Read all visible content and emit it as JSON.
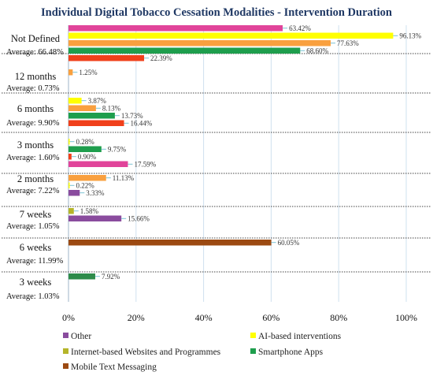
{
  "chart_data": {
    "type": "bar",
    "orientation": "horizontal",
    "title": "Individual Digital Tobacco Cessation Modalities - Intervention Duration",
    "xlabel": "",
    "ylabel": "",
    "xlim": [
      0,
      100
    ],
    "x_ticks": [
      "0%",
      "20%",
      "40%",
      "60%",
      "80%",
      "100%"
    ],
    "grid": "vertical",
    "legend_position": "bottom",
    "colors": {
      "Other": "#e1449a",
      "AI-based interventions": "#ffff00",
      "Internet-based Websites and Programmes": "#b5b52a",
      "Smartphone Apps": "#1e9e4d",
      "Mobile Text Messaging": "#9c4a12",
      "extra_orange": "#f9a03f",
      "extra_red": "#f0401b",
      "extra_purple": "#8a4c9e",
      "extra_darkgreen": "#2e8b4a",
      "highlight_pink": "#f8c8e8",
      "highlight_green": "#c8f0d8",
      "label_text": "#333333",
      "leader_line": "#5ab4c8"
    },
    "legend": [
      {
        "name": "Other",
        "color": "#8a4c9e"
      },
      {
        "name": "AI-based interventions",
        "color": "#ffff00"
      },
      {
        "name": "Internet-based Websites and Programmes",
        "color": "#b5b52a"
      },
      {
        "name": "Smartphone Apps",
        "color": "#1e9e4d"
      },
      {
        "name": "Mobile Text Messaging",
        "color": "#9c4a12"
      }
    ],
    "groups": [
      {
        "category": "Not Defined",
        "average": "Average: 66.48%",
        "bars": [
          {
            "value": 63.42,
            "label": "63.42%",
            "color": "#e1449a"
          },
          {
            "value": 96.13,
            "label": "96.13%",
            "color": "#ffff00"
          },
          {
            "value": 77.63,
            "label": "77.63%",
            "color": "#f9a03f"
          },
          {
            "value": 68.6,
            "label": "68.60%",
            "color": "#1e9e4d"
          },
          {
            "value": 22.39,
            "label": "22.39%",
            "color": "#f0401b"
          }
        ]
      },
      {
        "category": "12 months",
        "average": "Average: 0.73%",
        "bars": [
          {
            "value": 1.25,
            "label": "1.25%",
            "color": "#f9a03f"
          }
        ]
      },
      {
        "category": "6 months",
        "average": "Average: 9.90%",
        "bars": [
          {
            "value": 3.87,
            "label": "3.87%",
            "color": "#ffff00"
          },
          {
            "value": 8.13,
            "label": "8.13%",
            "color": "#f9a03f"
          },
          {
            "value": 13.73,
            "label": "13.73%",
            "color": "#1e9e4d"
          },
          {
            "value": 16.44,
            "label": "16.44%",
            "color": "#f0401b"
          }
        ]
      },
      {
        "category": "3 months",
        "average": "Average: 1.60%",
        "bars": [
          {
            "value": 0.28,
            "label": "0.28%",
            "color": "#ffff00"
          },
          {
            "value": 9.75,
            "label": "9.75%",
            "color": "#1e9e4d"
          },
          {
            "value": 0.9,
            "label": "0.90%",
            "color": "#f0401b"
          },
          {
            "value": 17.59,
            "label": "17.59%",
            "color": "#e1449a"
          }
        ]
      },
      {
        "category": "2 months",
        "average": "Average: 7.22%",
        "bars": [
          {
            "value": 11.13,
            "label": "11.13%",
            "color": "#f9a03f"
          },
          {
            "value": 0.22,
            "label": "0.22%",
            "color": "#ffff00"
          },
          {
            "value": 3.33,
            "label": "3.33%",
            "color": "#8a4c9e"
          }
        ]
      },
      {
        "category": "7 weeks",
        "average": "Average: 1.05%",
        "bars": [
          {
            "value": 1.58,
            "label": "1.58%",
            "color": "#b5b52a"
          },
          {
            "value": 15.66,
            "label": "15.66%",
            "color": "#8a4c9e"
          }
        ]
      },
      {
        "category": "6 weeks",
        "average": "Average: 11.99%",
        "bars": [
          {
            "value": 60.05,
            "label": "60.05%",
            "color": "#9c4a12"
          }
        ]
      },
      {
        "category": "3 weeks",
        "average": "Average: 1.03%",
        "bars": [
          {
            "value": 7.92,
            "label": "7.92%",
            "color": "#2e8b4a"
          }
        ]
      }
    ]
  }
}
